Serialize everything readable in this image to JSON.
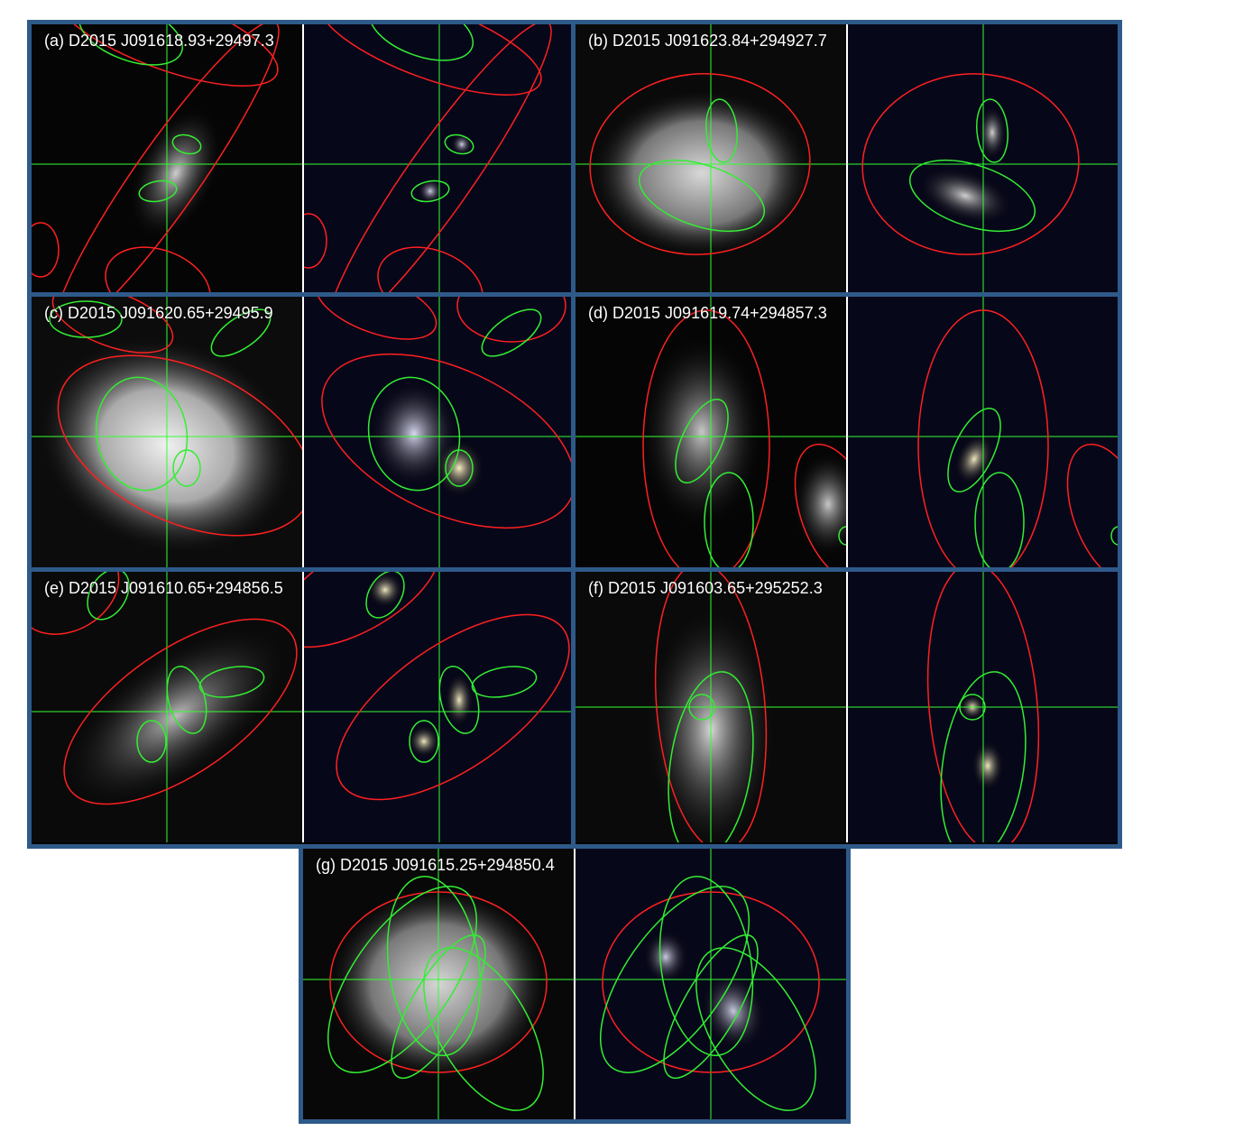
{
  "panels": [
    {
      "id": "a",
      "label": "(a) D2015 J091618.93+29497.3"
    },
    {
      "id": "b",
      "label": "(b) D2015 J091623.84+294927.7"
    },
    {
      "id": "c",
      "label": "(c) D2015 J091620.65+29495.9"
    },
    {
      "id": "d",
      "label": "(d) D2015 J091619.74+294857.3"
    },
    {
      "id": "e",
      "label": "(e) D2015 J091610.65+294856.5"
    },
    {
      "id": "f",
      "label": "(f) D2015 J091603.65+295252.3"
    },
    {
      "id": "g",
      "label": "(g) D2015 J091615.25+294850.4"
    }
  ],
  "colors": {
    "frame": "#2e5a8a",
    "crosshair": "#33ff33",
    "red_ellipse": "#ff2020",
    "green_ellipse": "#33ee33",
    "background": "#000000"
  }
}
